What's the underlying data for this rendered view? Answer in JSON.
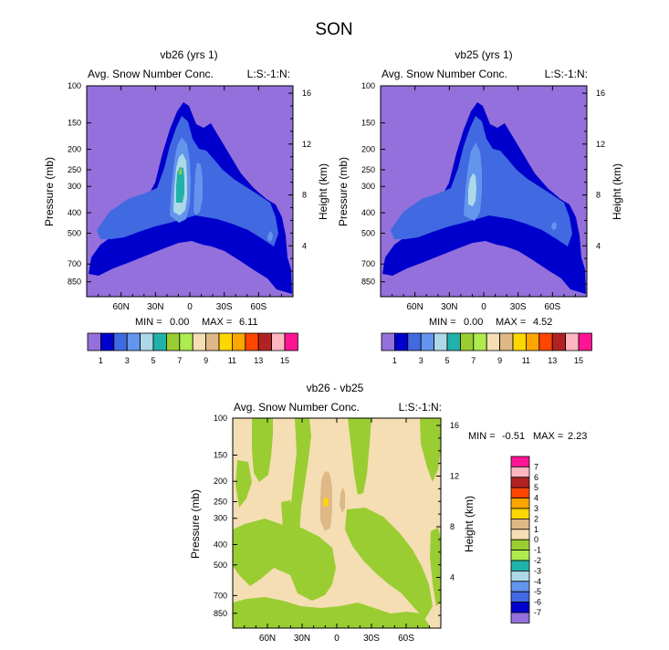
{
  "title": "SON",
  "colors": {
    "levels": [
      "#9370DB",
      "#0000CD",
      "#4169E1",
      "#6495ED",
      "#ADD8E6",
      "#20B2AA",
      "#9ACD32",
      "#ADEB4F",
      "#F5DEB3",
      "#DEB887",
      "#FFD700",
      "#FFA500",
      "#FF4500",
      "#B22222",
      "#FFB6C1",
      "#FF1493"
    ],
    "diff": [
      "#9370DB",
      "#0000CD",
      "#4169E1",
      "#6495ED",
      "#ADD8E6",
      "#20B2AA",
      "#ADEB4F",
      "#9ACD32",
      "#F5DEB3",
      "#DEB887",
      "#FFD700",
      "#FFA500",
      "#FF4500",
      "#B22222",
      "#FFB6C1",
      "#FF1493"
    ]
  },
  "chart_data": [
    {
      "type": "contour",
      "title": "vb26 (yrs 1)",
      "left_label": "Avg. Snow Number Conc.",
      "right_label": "L:S:-1:N:",
      "ylabel": "Pressure (mb)",
      "ylabel_right": "Height (km)",
      "xticks": [
        "60N",
        "30N",
        "0",
        "30S",
        "60S"
      ],
      "xtick_lat": [
        60,
        30,
        0,
        -30,
        -60
      ],
      "xlim": [
        90,
        -90
      ],
      "yticks": [
        "100",
        "150",
        "200",
        "250",
        "300",
        "400",
        "500",
        "700",
        "850"
      ],
      "yticks_val": [
        100,
        150,
        200,
        250,
        300,
        400,
        500,
        700,
        850
      ],
      "ylim": [
        100,
        1000
      ],
      "yticks_right": [
        "16",
        "12",
        "8",
        "4"
      ],
      "yticks_right_km": [
        16,
        12,
        8,
        4
      ],
      "min_label": "MIN =",
      "min": "0.00",
      "max_label": "MAX =",
      "max": "6.11",
      "max_value": 6.11,
      "colorbar_labels": [
        "1",
        "3",
        "5",
        "7",
        "9",
        "11",
        "13",
        "15"
      ]
    },
    {
      "type": "contour",
      "title": "vb25 (yrs 1)",
      "left_label": "Avg. Snow Number Conc.",
      "right_label": "L:S:-1:N:",
      "ylabel": "Pressure (mb)",
      "ylabel_right": "Height (km)",
      "xticks": [
        "60N",
        "30N",
        "0",
        "30S",
        "60S"
      ],
      "xtick_lat": [
        60,
        30,
        0,
        -30,
        -60
      ],
      "xlim": [
        90,
        -90
      ],
      "yticks": [
        "100",
        "150",
        "200",
        "250",
        "300",
        "400",
        "500",
        "700",
        "850"
      ],
      "yticks_val": [
        100,
        150,
        200,
        250,
        300,
        400,
        500,
        700,
        850
      ],
      "ylim": [
        100,
        1000
      ],
      "yticks_right": [
        "16",
        "12",
        "8",
        "4"
      ],
      "yticks_right_km": [
        16,
        12,
        8,
        4
      ],
      "min_label": "MIN =",
      "min": "0.00",
      "max_label": "MAX =",
      "max": "4.52",
      "max_value": 4.52,
      "colorbar_labels": [
        "1",
        "3",
        "5",
        "7",
        "9",
        "11",
        "13",
        "15"
      ]
    },
    {
      "type": "contour",
      "title": "vb26 - vb25",
      "left_label": "Avg. Snow Number Conc.",
      "right_label": "L:S:-1:N:",
      "ylabel": "Pressure (mb)",
      "ylabel_right": "Height (km)",
      "xticks": [
        "60N",
        "30N",
        "0",
        "30S",
        "60S"
      ],
      "xtick_lat": [
        60,
        30,
        0,
        -30,
        -60
      ],
      "xlim": [
        90,
        -90
      ],
      "yticks": [
        "100",
        "150",
        "200",
        "250",
        "300",
        "400",
        "500",
        "700",
        "850"
      ],
      "yticks_val": [
        100,
        150,
        200,
        250,
        300,
        400,
        500,
        700,
        850
      ],
      "ylim": [
        100,
        1000
      ],
      "yticks_right": [
        "16",
        "12",
        "8",
        "4"
      ],
      "yticks_right_km": [
        16,
        12,
        8,
        4
      ],
      "min_label": "MIN =",
      "min": "-0.51",
      "max_label": "MAX =",
      "max": "2.23",
      "min_value": -0.51,
      "max_value": 2.23,
      "colorbar_labels": [
        "7",
        "6",
        "5",
        "4",
        "3",
        "2",
        "1",
        "0",
        "-1",
        "-2",
        "-3",
        "-4",
        "-5",
        "-6",
        "-7"
      ]
    }
  ]
}
